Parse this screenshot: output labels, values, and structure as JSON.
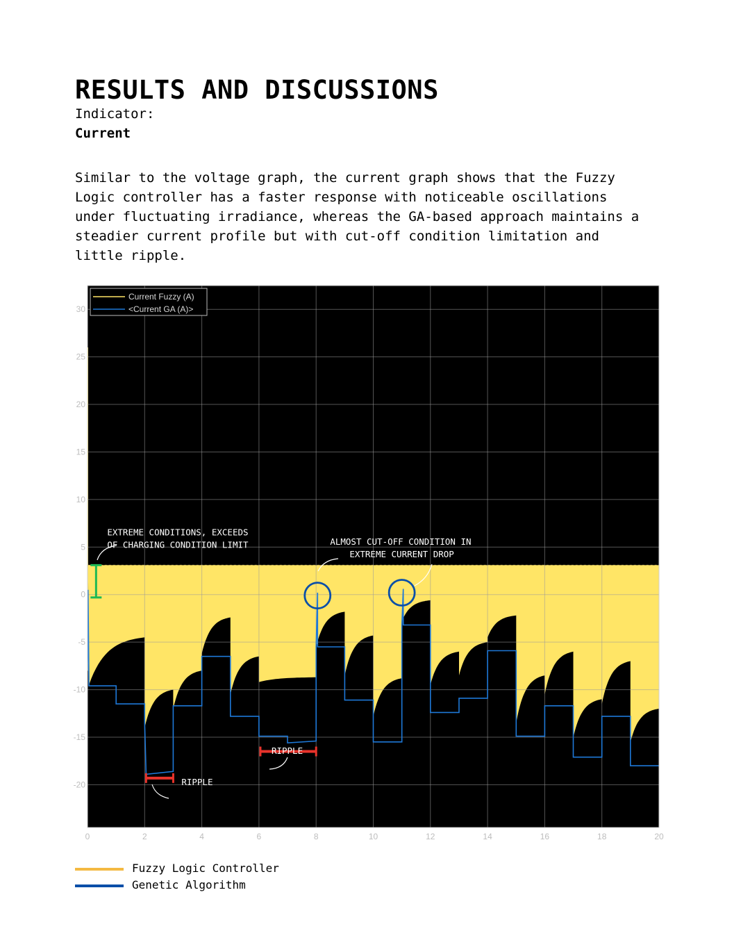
{
  "header": {
    "title": "RESULTS AND DISCUSSIONS",
    "indicator_label": "Indicator:",
    "indicator_value": "Current"
  },
  "body_text": "Similar to the voltage graph, the current graph shows that the Fuzzy\nLogic controller has a faster response with noticeable oscillations\nunder fluctuating irradiance, whereas the GA-based approach maintains a\nsteadier current profile but with cut-off condition limitation and\nlittle ripple.",
  "chart_data": {
    "type": "line",
    "xlim": [
      0,
      20
    ],
    "ylim": [
      -24.5,
      32.5
    ],
    "x_ticks": [
      0,
      2,
      4,
      6,
      8,
      10,
      12,
      14,
      16,
      18,
      20
    ],
    "y_ticks": [
      30,
      25,
      20,
      15,
      10,
      5,
      0,
      -5,
      -10,
      -15,
      -20
    ],
    "grid": true,
    "background": "#000000",
    "legend_placement": "top-left",
    "series": [
      {
        "name": "Current Fuzzy (A)",
        "color": "#ffe566",
        "upper_level": 3.1,
        "segments": [
          {
            "x": [
              0.05,
              2.0
            ],
            "start": -9.5,
            "end": -4.5
          },
          {
            "x": [
              2.0,
              3.0
            ],
            "start": -14.0,
            "end": -10.0
          },
          {
            "x": [
              3.0,
              4.0
            ],
            "start": -12.0,
            "end": -8.0
          },
          {
            "x": [
              4.0,
              5.0
            ],
            "start": -6.2,
            "end": -2.4
          },
          {
            "x": [
              5.0,
              6.0
            ],
            "start": -10.5,
            "end": -6.5
          },
          {
            "x": [
              6.0,
              8.0
            ],
            "start": -9.2,
            "end": -8.7
          },
          {
            "x": [
              8.0,
              9.0
            ],
            "start": -5.5,
            "end": -1.8
          },
          {
            "x": [
              9.0,
              10.0
            ],
            "start": -8.5,
            "end": -4.3
          },
          {
            "x": [
              10.0,
              11.0
            ],
            "start": -12.8,
            "end": -8.8
          },
          {
            "x": [
              11.0,
              12.0
            ],
            "start": -2.8,
            "end": -0.6
          },
          {
            "x": [
              12.0,
              13.0
            ],
            "start": -9.5,
            "end": -6.0
          },
          {
            "x": [
              13.0,
              14.0
            ],
            "start": -8.5,
            "end": -5.0
          },
          {
            "x": [
              14.0,
              15.0
            ],
            "start": -4.5,
            "end": -2.2
          },
          {
            "x": [
              15.0,
              16.0
            ],
            "start": -13.5,
            "end": -8.5
          },
          {
            "x": [
              16.0,
              17.0
            ],
            "start": -10.5,
            "end": -6.0
          },
          {
            "x": [
              17.0,
              18.0
            ],
            "start": -15.0,
            "end": -11.0
          },
          {
            "x": [
              18.0,
              19.0
            ],
            "start": -11.5,
            "end": -7.0
          },
          {
            "x": [
              19.0,
              20.0
            ],
            "start": -15.5,
            "end": -12.0
          }
        ]
      },
      {
        "name": "<Current GA (A)>",
        "color": "#1e78d7",
        "x": [
          0,
          0.02,
          0.05,
          1.0,
          1.0,
          2.0,
          2.0,
          2.05,
          3.0,
          3.0,
          4.0,
          4.0,
          5.0,
          5.0,
          6.0,
          6.0,
          7.0,
          7.0,
          8.0,
          8.0,
          8.05,
          8.05,
          9.0,
          9.0,
          10.0,
          10.0,
          11.0,
          11.0,
          11.05,
          11.05,
          12.0,
          12.0,
          13.0,
          13.0,
          14.0,
          14.0,
          15.0,
          15.0,
          16.0,
          16.0,
          17.0,
          17.0,
          18.0,
          18.0,
          19.0,
          19.0,
          20.0
        ],
        "y": [
          -8.0,
          0.5,
          -9.6,
          -9.6,
          -11.5,
          -11.5,
          -13.5,
          -18.9,
          -18.6,
          -11.7,
          -11.7,
          -6.5,
          -6.5,
          -12.8,
          -12.8,
          -14.9,
          -14.9,
          -15.6,
          -15.4,
          -5.5,
          0.2,
          -5.5,
          -5.5,
          -11.1,
          -11.1,
          -15.5,
          -15.5,
          -3.2,
          0.6,
          -3.2,
          -3.2,
          -12.4,
          -12.4,
          -10.9,
          -10.9,
          -5.9,
          -5.9,
          -14.9,
          -14.9,
          -11.7,
          -11.7,
          -17.1,
          -17.1,
          -12.8,
          -12.8,
          -18.0,
          -18.0
        ]
      }
    ],
    "annotations": [
      {
        "text": [
          "EXTREME CONDITIONS, EXCEEDS",
          "OF CHARGING CONDITION LIMIT"
        ],
        "x": 0.3,
        "y": 5.0
      },
      {
        "text": [
          "ALMOST CUT-OFF CONDITION IN",
          "EXTREME CURRENT DROP"
        ],
        "x": 8.1,
        "y": 4.0
      },
      {
        "text": [
          "RIPPLE"
        ],
        "x": 6.05,
        "y": -18.0
      },
      {
        "text": [
          "RIPPLE"
        ],
        "x": 2.9,
        "y": -21.3
      }
    ],
    "markers": {
      "green_range": {
        "x": 0.3,
        "y": [
          3.1,
          -0.3
        ],
        "color": "#1db954"
      },
      "circles": [
        {
          "x": 8.05,
          "y": -0.1,
          "color": "#0a4fa8"
        },
        {
          "x": 11.0,
          "y": 0.2,
          "color": "#0a4fa8"
        }
      ],
      "ripple_brackets": [
        {
          "x": [
            2.05,
            3.0
          ],
          "y": -19.3,
          "color": "#e8332b"
        },
        {
          "x": [
            6.05,
            8.0
          ],
          "y": -16.5,
          "color": "#e8332b"
        }
      ]
    }
  },
  "bottom_legend": [
    {
      "label": "Fuzzy Logic Controller",
      "color": "#f4b942"
    },
    {
      "label": "Genetic Algorithm",
      "color": "#0a4fa8"
    }
  ]
}
